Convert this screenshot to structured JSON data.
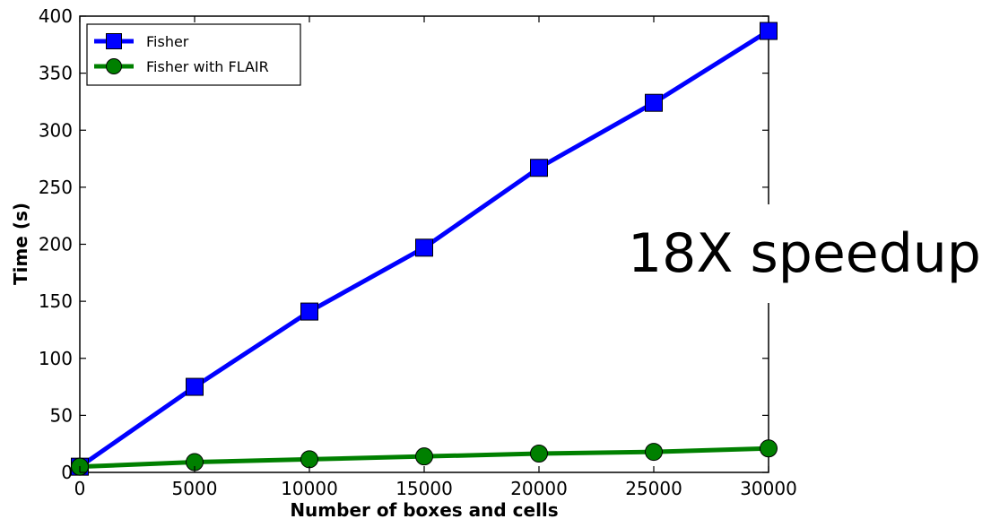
{
  "callout": {
    "text": "18X speedup"
  },
  "chart_data": {
    "type": "line",
    "title": "",
    "xlabel": "Number of boxes and cells",
    "ylabel": "Time (s)",
    "xlim": [
      0,
      30000
    ],
    "ylim": [
      0,
      400
    ],
    "xticks": [
      0,
      5000,
      10000,
      15000,
      20000,
      25000,
      30000
    ],
    "yticks": [
      0,
      50,
      100,
      150,
      200,
      250,
      300,
      350,
      400
    ],
    "grid": false,
    "legend_position": "top-left",
    "x": [
      0,
      5000,
      10000,
      15000,
      20000,
      25000,
      30000
    ],
    "series": [
      {
        "name": "Fisher",
        "color": "#0000ff",
        "marker": "square",
        "values": [
          5,
          75,
          141,
          197,
          267,
          324,
          387
        ]
      },
      {
        "name": "Fisher with FLAIR",
        "color": "#008000",
        "marker": "circle",
        "values": [
          5,
          9,
          11.5,
          14,
          16.5,
          18,
          21
        ]
      }
    ]
  }
}
